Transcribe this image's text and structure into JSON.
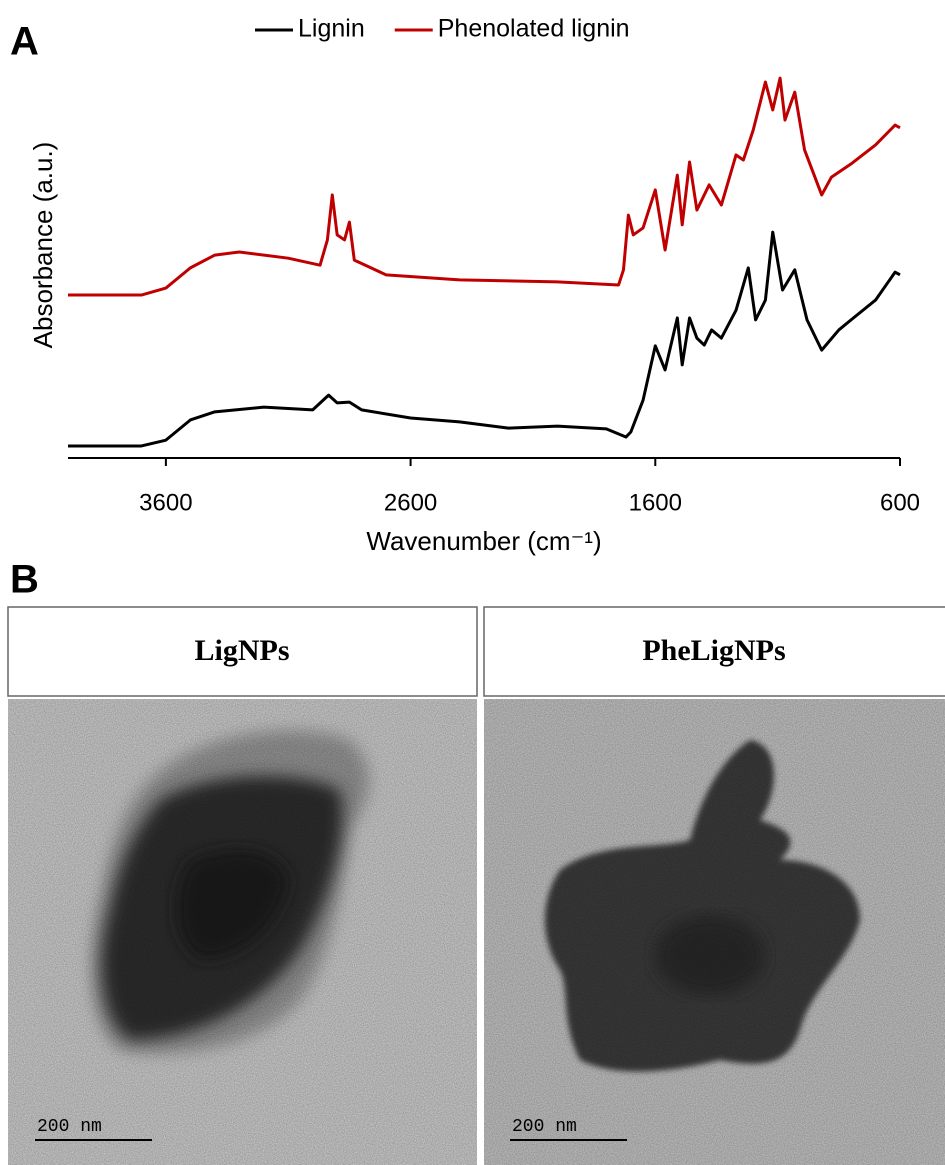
{
  "panel_labels": [
    "A",
    "B"
  ],
  "chart_data": {
    "type": "line",
    "x_label": "Wavenumber (cm⁻¹)",
    "y_label": "Absorbance (a.u.)",
    "xlim": [
      4000,
      600
    ],
    "ylim": [
      0,
      100
    ],
    "xticks": [
      3600,
      2600,
      1600,
      600
    ],
    "legend": "top",
    "series": [
      {
        "name": "Lignin",
        "color": "#000000",
        "x": [
          4000,
          3700,
          3600,
          3500,
          3400,
          3200,
          3000,
          2935,
          2900,
          2850,
          2800,
          2600,
          2400,
          2200,
          2000,
          1800,
          1720,
          1700,
          1650,
          1600,
          1560,
          1510,
          1490,
          1460,
          1430,
          1400,
          1370,
          1330,
          1270,
          1220,
          1190,
          1150,
          1120,
          1080,
          1030,
          980,
          920,
          850,
          800,
          700,
          620,
          600
        ],
        "values": [
          3.1,
          3.1,
          4.6,
          9.8,
          11.9,
          13.1,
          12.4,
          16.2,
          14.2,
          14.4,
          12.4,
          10.3,
          9.3,
          7.7,
          8.2,
          7.5,
          5.4,
          6.7,
          14.9,
          28.9,
          22.7,
          36.1,
          24,
          36.1,
          30.9,
          29.1,
          33,
          30.9,
          38.1,
          49,
          35.6,
          40.7,
          58.2,
          43.3,
          48.5,
          35.6,
          27.8,
          33,
          35.6,
          40.7,
          47.9,
          47.2
        ]
      },
      {
        "name": "Phenolated lignin",
        "color": "#c00000",
        "x": [
          4000,
          3700,
          3600,
          3500,
          3400,
          3300,
          3100,
          2970,
          2940,
          2920,
          2900,
          2870,
          2850,
          2830,
          2700,
          2400,
          2000,
          1750,
          1730,
          1710,
          1690,
          1650,
          1600,
          1560,
          1510,
          1490,
          1460,
          1430,
          1380,
          1330,
          1270,
          1240,
          1200,
          1150,
          1120,
          1090,
          1070,
          1030,
          990,
          920,
          880,
          800,
          700,
          620,
          600
        ],
        "values": [
          42,
          42,
          43.8,
          49,
          52.3,
          53.1,
          51.5,
          49.7,
          56.2,
          67.8,
          57.5,
          56.2,
          60.8,
          51,
          47.2,
          45.9,
          45.4,
          44.6,
          48.5,
          62.6,
          57.5,
          59.3,
          69.1,
          53.6,
          72.9,
          60.1,
          76.3,
          63.9,
          70.4,
          65.2,
          78.1,
          76.8,
          84.5,
          96.9,
          89.7,
          97.9,
          87.1,
          94.3,
          79.4,
          67.8,
          72.4,
          75.8,
          80.7,
          85.8,
          85.1
        ]
      }
    ]
  },
  "panels": [
    {
      "title": "LigNPs",
      "scale_bar": "200 nm"
    },
    {
      "title": "PheLigNPs",
      "scale_bar": "200 nm"
    }
  ]
}
